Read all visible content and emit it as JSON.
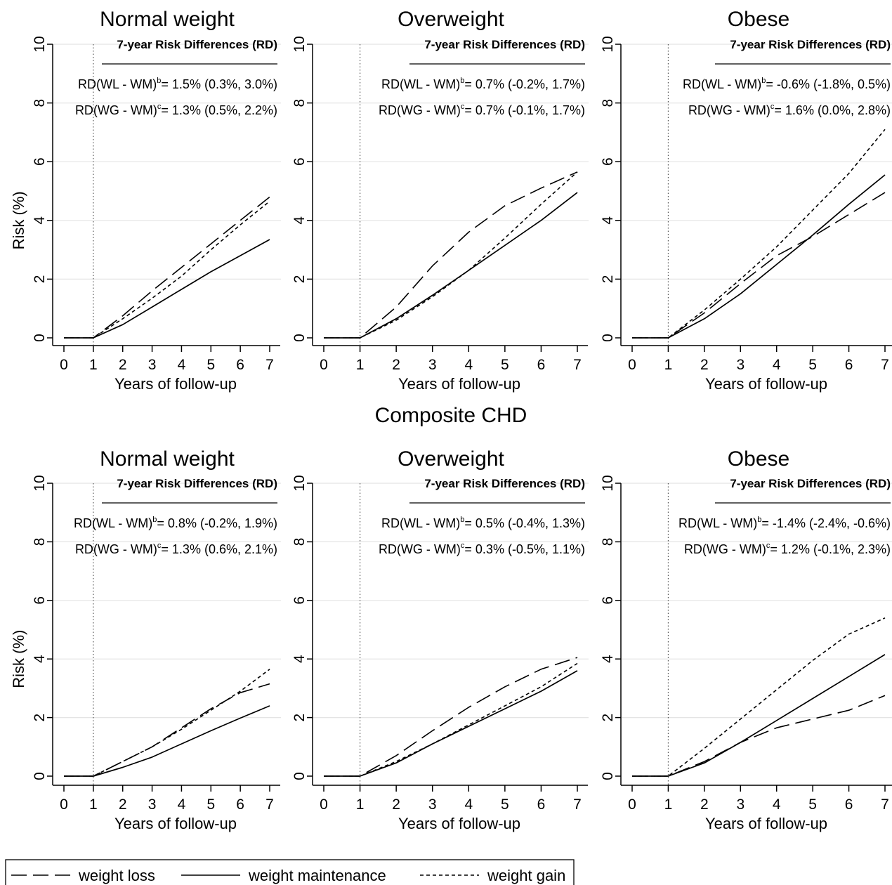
{
  "middle_title": "Composite CHD",
  "rd_header": "7-year Risk Differences (RD)",
  "legend": {
    "items": [
      {
        "label": "weight loss",
        "style": "longdash"
      },
      {
        "label": "weight maintenance",
        "style": "solid"
      },
      {
        "label": "weight gain",
        "style": "shortdash"
      }
    ]
  },
  "chart_data": [
    {
      "type": "line",
      "title": "Normal weight",
      "xlabel": "Years of follow-up",
      "ylabel": "Risk (%)",
      "x": [
        0,
        1,
        2,
        3,
        4,
        5,
        6,
        7
      ],
      "xlim": [
        0,
        7
      ],
      "ylim": [
        0,
        10
      ],
      "yticks": [
        0,
        2,
        4,
        6,
        8,
        10
      ],
      "grid": true,
      "reference_line_x": 1,
      "series": [
        {
          "name": "weight loss",
          "values": [
            0,
            0,
            0.75,
            1.6,
            2.4,
            3.2,
            4.0,
            4.8
          ]
        },
        {
          "name": "weight maintenance",
          "values": [
            0,
            0,
            0.45,
            1.05,
            1.65,
            2.25,
            2.8,
            3.35
          ]
        },
        {
          "name": "weight gain",
          "values": [
            0,
            0,
            0.65,
            1.35,
            2.1,
            3.0,
            3.85,
            4.65
          ]
        }
      ],
      "risk_differences": [
        {
          "prefix": "RD(WL - WM)",
          "sup": "b",
          "value": "= 1.5% (0.3%, 3.0%)"
        },
        {
          "prefix": "RD(WG - WM)",
          "sup": "c",
          "value": "= 1.3% (0.5%, 2.2%)"
        }
      ]
    },
    {
      "type": "line",
      "title": "Overweight",
      "xlabel": "Years of follow-up",
      "ylabel": "",
      "x": [
        0,
        1,
        2,
        3,
        4,
        5,
        6,
        7
      ],
      "xlim": [
        0,
        7
      ],
      "ylim": [
        0,
        10
      ],
      "yticks": [
        0,
        2,
        4,
        6,
        8,
        10
      ],
      "grid": true,
      "reference_line_x": 1,
      "series": [
        {
          "name": "weight loss",
          "values": [
            0,
            0,
            1.05,
            2.45,
            3.6,
            4.5,
            5.1,
            5.65
          ]
        },
        {
          "name": "weight maintenance",
          "values": [
            0,
            0,
            0.65,
            1.45,
            2.3,
            3.15,
            4.0,
            4.95
          ]
        },
        {
          "name": "weight gain",
          "values": [
            0,
            0,
            0.6,
            1.4,
            2.3,
            3.4,
            4.55,
            5.65
          ]
        }
      ],
      "risk_differences": [
        {
          "prefix": "RD(WL - WM)",
          "sup": "b",
          "value": "= 0.7% (-0.2%, 1.7%)"
        },
        {
          "prefix": "RD(WG - WM)",
          "sup": "c",
          "value": "= 0.7% (-0.1%, 1.7%)"
        }
      ]
    },
    {
      "type": "line",
      "title": "Obese",
      "xlabel": "Years of follow-up",
      "ylabel": "",
      "x": [
        0,
        1,
        2,
        3,
        4,
        5,
        6,
        7
      ],
      "xlim": [
        0,
        7
      ],
      "ylim": [
        0,
        10
      ],
      "yticks": [
        0,
        2,
        4,
        6,
        8,
        10
      ],
      "grid": true,
      "reference_line_x": 1,
      "series": [
        {
          "name": "weight loss",
          "values": [
            0,
            0,
            0.85,
            1.85,
            2.8,
            3.45,
            4.2,
            4.95
          ]
        },
        {
          "name": "weight maintenance",
          "values": [
            0,
            0,
            0.65,
            1.5,
            2.5,
            3.5,
            4.55,
            5.55
          ]
        },
        {
          "name": "weight gain",
          "values": [
            0,
            0,
            0.95,
            2.0,
            3.1,
            4.35,
            5.6,
            7.1
          ]
        }
      ],
      "risk_differences": [
        {
          "prefix": "RD(WL - WM)",
          "sup": "b",
          "value": "= -0.6% (-1.8%, 0.5%)"
        },
        {
          "prefix": "RD(WG - WM)",
          "sup": "c",
          "value": "= 1.6% (0.0%, 2.8%)"
        }
      ]
    },
    {
      "type": "line",
      "title": "Normal weight",
      "xlabel": "Years of follow-up",
      "ylabel": "Risk (%)",
      "x": [
        0,
        1,
        2,
        3,
        4,
        5,
        6,
        7
      ],
      "xlim": [
        0,
        7
      ],
      "ylim": [
        0,
        10
      ],
      "yticks": [
        0,
        2,
        4,
        6,
        8,
        10
      ],
      "grid": true,
      "reference_line_x": 1,
      "series": [
        {
          "name": "weight loss",
          "values": [
            0,
            0,
            0.5,
            1.0,
            1.65,
            2.3,
            2.85,
            3.15
          ]
        },
        {
          "name": "weight maintenance",
          "values": [
            0,
            0,
            0.3,
            0.65,
            1.1,
            1.55,
            1.98,
            2.4
          ]
        },
        {
          "name": "weight gain",
          "values": [
            0,
            0,
            0.5,
            1.0,
            1.6,
            2.25,
            2.9,
            3.65
          ]
        }
      ],
      "risk_differences": [
        {
          "prefix": "RD(WL - WM)",
          "sup": "b",
          "value": "= 0.8% (-0.2%, 1.9%)"
        },
        {
          "prefix": "RD(WG - WM)",
          "sup": "c",
          "value": "= 1.3% (0.6%, 2.1%)"
        }
      ]
    },
    {
      "type": "line",
      "title": "Overweight",
      "xlabel": "Years of follow-up",
      "ylabel": "",
      "x": [
        0,
        1,
        2,
        3,
        4,
        5,
        6,
        7
      ],
      "xlim": [
        0,
        7
      ],
      "ylim": [
        0,
        10
      ],
      "yticks": [
        0,
        2,
        4,
        6,
        8,
        10
      ],
      "grid": true,
      "reference_line_x": 1,
      "series": [
        {
          "name": "weight loss",
          "values": [
            0,
            0,
            0.7,
            1.55,
            2.35,
            3.05,
            3.65,
            4.05
          ]
        },
        {
          "name": "weight maintenance",
          "values": [
            0,
            0,
            0.45,
            1.1,
            1.7,
            2.3,
            2.9,
            3.6
          ]
        },
        {
          "name": "weight gain",
          "values": [
            0,
            0,
            0.5,
            1.1,
            1.75,
            2.4,
            3.05,
            3.85
          ]
        }
      ],
      "risk_differences": [
        {
          "prefix": "RD(WL - WM)",
          "sup": "b",
          "value": "= 0.5% (-0.4%, 1.3%)"
        },
        {
          "prefix": "RD(WG - WM)",
          "sup": "c",
          "value": "= 0.3% (-0.5%, 1.1%)"
        }
      ]
    },
    {
      "type": "line",
      "title": "Obese",
      "xlabel": "Years of follow-up",
      "ylabel": "",
      "x": [
        0,
        1,
        2,
        3,
        4,
        5,
        6,
        7
      ],
      "xlim": [
        0,
        7
      ],
      "ylim": [
        0,
        10
      ],
      "yticks": [
        0,
        2,
        4,
        6,
        8,
        10
      ],
      "grid": true,
      "reference_line_x": 1,
      "series": [
        {
          "name": "weight loss",
          "values": [
            0,
            0,
            0.5,
            1.15,
            1.65,
            1.95,
            2.25,
            2.75
          ]
        },
        {
          "name": "weight maintenance",
          "values": [
            0,
            0,
            0.45,
            1.15,
            1.9,
            2.65,
            3.4,
            4.15
          ]
        },
        {
          "name": "weight gain",
          "values": [
            0,
            0,
            0.95,
            1.95,
            2.95,
            3.95,
            4.85,
            5.4
          ]
        }
      ],
      "risk_differences": [
        {
          "prefix": "RD(WL - WM)",
          "sup": "b",
          "value": "= -1.4% (-2.4%, -0.6%)"
        },
        {
          "prefix": "RD(WG - WM)",
          "sup": "c",
          "value": "= 1.2% (-0.1%, 2.3%)"
        }
      ]
    }
  ]
}
